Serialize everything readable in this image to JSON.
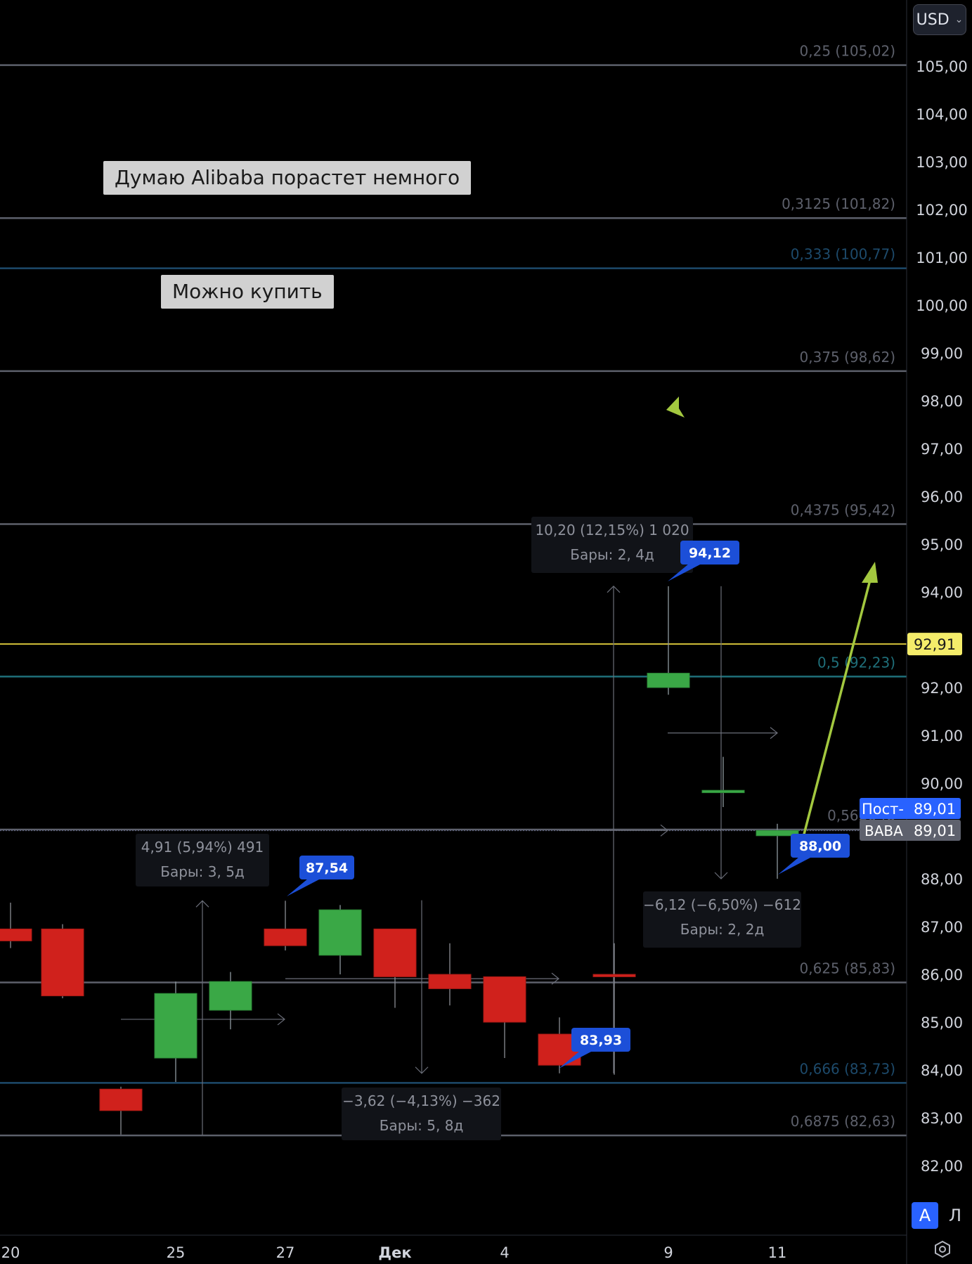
{
  "currency": {
    "label": "USD"
  },
  "notes": [
    {
      "text": "Думаю Alibaba порастет немного"
    },
    {
      "text": "Можно купить"
    }
  ],
  "scale_buttons": {
    "auto": "A",
    "log": "Л"
  },
  "colors": {
    "background": "#000000",
    "up": "#3aa846",
    "down": "#d0211c",
    "fib_gray": "#5d606b",
    "fib_teal": "#1f6f7a",
    "fib_navy": "#1d4a6b",
    "price_line": "#d4c23a",
    "arrow": "#a3c83f",
    "label_blue": "#1c4fd8"
  },
  "chart_data": {
    "type": "candlestick",
    "symbol": "BABA",
    "ylim": [
      81.7,
      106.15
    ],
    "y_ticks": [
      "105,00",
      "104,00",
      "103,00",
      "102,00",
      "101,00",
      "100,00",
      "99,00",
      "98,00",
      "97,00",
      "96,00",
      "95,00",
      "94,00",
      "92,00",
      "91,00",
      "90,00",
      "88,00",
      "87,00",
      "86,00",
      "85,00",
      "84,00",
      "83,00",
      "82,00"
    ],
    "x_ticks": [
      "20",
      "25",
      "27",
      "Дек",
      "4",
      "9",
      "11"
    ],
    "candles": [
      {
        "open": 86.95,
        "high": 87.5,
        "low": 86.55,
        "close": 86.7
      },
      {
        "open": 86.95,
        "high": 87.05,
        "low": 85.5,
        "close": 85.55
      },
      {
        "open": 83.6,
        "high": 83.65,
        "low": 82.65,
        "close": 83.15
      },
      {
        "open": 84.25,
        "high": 85.85,
        "low": 83.75,
        "close": 85.6
      },
      {
        "open": 85.25,
        "high": 86.05,
        "low": 84.85,
        "close": 85.85
      },
      {
        "open": 86.95,
        "high": 87.54,
        "low": 86.5,
        "close": 86.6
      },
      {
        "open": 86.4,
        "high": 87.45,
        "low": 86.0,
        "close": 87.35
      },
      {
        "open": 86.95,
        "high": 86.95,
        "low": 85.3,
        "close": 85.95
      },
      {
        "open": 86.0,
        "high": 86.65,
        "low": 85.35,
        "close": 85.7
      },
      {
        "open": 85.95,
        "high": 85.95,
        "low": 84.25,
        "close": 85.0
      },
      {
        "open": 84.75,
        "high": 85.1,
        "low": 83.93,
        "close": 84.1
      },
      {
        "open": 86.0,
        "high": 86.65,
        "low": 83.9,
        "close": 85.95
      },
      {
        "open": 92.0,
        "high": 94.12,
        "low": 91.85,
        "close": 92.3
      },
      {
        "open": 89.8,
        "high": 90.55,
        "low": 89.5,
        "close": 89.85
      },
      {
        "open": 88.9,
        "high": 89.15,
        "low": 88.0,
        "close": 89.01
      }
    ],
    "fib_levels": [
      {
        "label": "0,25 (105,02)",
        "value": 105.02,
        "color": "gray"
      },
      {
        "label": "0,3125 (101,82)",
        "value": 101.82,
        "color": "gray"
      },
      {
        "label": "0,333 (100,77)",
        "value": 100.77,
        "color": "navy"
      },
      {
        "label": "0,375 (98,62)",
        "value": 98.62,
        "color": "gray"
      },
      {
        "label": "0,4375 (95,42)",
        "value": 95.42,
        "color": "gray"
      },
      {
        "label": "0,5 (92,23)",
        "value": 92.23,
        "color": "teal"
      },
      {
        "label": "0,5626 (8",
        "value": 89.03,
        "color": "gray"
      },
      {
        "label": "0,625 (85,83)",
        "value": 85.83,
        "color": "gray"
      },
      {
        "label": "0,666 (83,73)",
        "value": 83.73,
        "color": "navy"
      },
      {
        "label": "0,6875 (82,63)",
        "value": 82.63,
        "color": "gray"
      }
    ],
    "horizontal_price_line": {
      "value": 92.91,
      "label": "92,91"
    },
    "price_labels": [
      {
        "value": 87.54,
        "text": "87,54"
      },
      {
        "value": 83.93,
        "text": "83,93"
      },
      {
        "value": 94.12,
        "text": "94,12"
      },
      {
        "value": 88.0,
        "text": "88,00"
      }
    ],
    "measurements": [
      {
        "line1": "4,91 (5,94%) 491",
        "line2": "Бары: 3, 5д"
      },
      {
        "line1": "−3,62 (−4,13%) −362",
        "line2": "Бары: 5, 8д"
      },
      {
        "line1": "10,20 (12,15%) 1 020",
        "line2": "Бары: 2, 4д"
      },
      {
        "line1": "−6,12 (−6,50%) −612",
        "line2": "Бары: 2, 2д"
      }
    ],
    "last_price": {
      "series_label": "Пост-",
      "series_value": "89,01",
      "symbol_label": "BABA",
      "symbol_value": "89,01"
    }
  }
}
